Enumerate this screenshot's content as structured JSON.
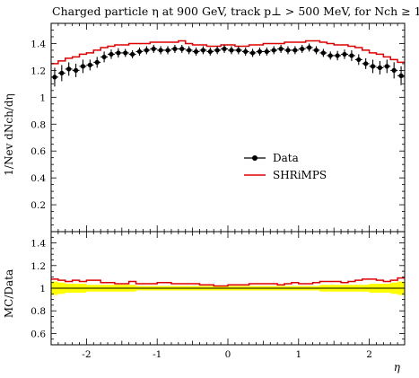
{
  "chart_data": {
    "type": "line",
    "title": "Charged particle η at 900 GeV, track p⊥ > 500 MeV, for Nch ≥ 1",
    "xlabel": "η",
    "ylabel": "1/Nev dNch/dη",
    "ratio_ylabel": "MC/Data",
    "xlim": [
      -2.5,
      2.5
    ],
    "ylim": [
      0,
      1.55
    ],
    "ratio_ylim": [
      0.5,
      1.5
    ],
    "x_ticks": [
      -2,
      -1,
      0,
      1,
      2
    ],
    "y_ticks": [
      0.2,
      0.4,
      0.6,
      0.8,
      1,
      1.2,
      1.4
    ],
    "ratio_y_ticks": [
      0.6,
      0.8,
      1,
      1.2,
      1.4
    ],
    "legend_position": "center-right",
    "series": [
      {
        "name": "Data",
        "style": "points-with-errors",
        "color": "#000000",
        "x": [
          -2.45,
          -2.35,
          -2.25,
          -2.15,
          -2.05,
          -1.95,
          -1.85,
          -1.75,
          -1.65,
          -1.55,
          -1.45,
          -1.35,
          -1.25,
          -1.15,
          -1.05,
          -0.95,
          -0.85,
          -0.75,
          -0.65,
          -0.55,
          -0.45,
          -0.35,
          -0.25,
          -0.15,
          -0.05,
          0.05,
          0.15,
          0.25,
          0.35,
          0.45,
          0.55,
          0.65,
          0.75,
          0.85,
          0.95,
          1.05,
          1.15,
          1.25,
          1.35,
          1.45,
          1.55,
          1.65,
          1.75,
          1.85,
          1.95,
          2.05,
          2.15,
          2.25,
          2.35,
          2.45
        ],
        "y": [
          1.15,
          1.18,
          1.21,
          1.2,
          1.23,
          1.24,
          1.26,
          1.3,
          1.32,
          1.33,
          1.33,
          1.32,
          1.34,
          1.35,
          1.36,
          1.35,
          1.35,
          1.36,
          1.36,
          1.35,
          1.34,
          1.35,
          1.34,
          1.35,
          1.36,
          1.35,
          1.35,
          1.34,
          1.33,
          1.34,
          1.34,
          1.35,
          1.36,
          1.35,
          1.35,
          1.36,
          1.37,
          1.35,
          1.33,
          1.31,
          1.31,
          1.32,
          1.31,
          1.28,
          1.25,
          1.23,
          1.22,
          1.23,
          1.2,
          1.16
        ],
        "yerr": [
          0.07,
          0.06,
          0.05,
          0.05,
          0.05,
          0.04,
          0.04,
          0.04,
          0.035,
          0.035,
          0.03,
          0.03,
          0.03,
          0.03,
          0.03,
          0.03,
          0.03,
          0.03,
          0.03,
          0.03,
          0.03,
          0.03,
          0.03,
          0.03,
          0.03,
          0.03,
          0.03,
          0.03,
          0.03,
          0.03,
          0.03,
          0.03,
          0.03,
          0.03,
          0.03,
          0.03,
          0.03,
          0.03,
          0.03,
          0.03,
          0.035,
          0.035,
          0.04,
          0.04,
          0.04,
          0.05,
          0.05,
          0.05,
          0.06,
          0.07
        ]
      },
      {
        "name": "SHRiMPS",
        "style": "step",
        "color": "#dd0000",
        "bin_edges": [
          -2.5,
          -2.4,
          -2.3,
          -2.2,
          -2.1,
          -2.0,
          -1.9,
          -1.8,
          -1.7,
          -1.6,
          -1.5,
          -1.4,
          -1.3,
          -1.2,
          -1.1,
          -1.0,
          -0.9,
          -0.8,
          -0.7,
          -0.6,
          -0.5,
          -0.4,
          -0.3,
          -0.2,
          -0.1,
          0.0,
          0.1,
          0.2,
          0.3,
          0.4,
          0.5,
          0.6,
          0.7,
          0.8,
          0.9,
          1.0,
          1.1,
          1.2,
          1.3,
          1.4,
          1.5,
          1.6,
          1.7,
          1.8,
          1.9,
          2.0,
          2.1,
          2.2,
          2.3,
          2.4,
          2.5
        ],
        "y": [
          1.25,
          1.27,
          1.29,
          1.3,
          1.32,
          1.33,
          1.35,
          1.37,
          1.38,
          1.39,
          1.39,
          1.4,
          1.4,
          1.4,
          1.41,
          1.41,
          1.41,
          1.41,
          1.42,
          1.4,
          1.39,
          1.39,
          1.38,
          1.38,
          1.39,
          1.39,
          1.38,
          1.38,
          1.39,
          1.39,
          1.4,
          1.4,
          1.4,
          1.41,
          1.41,
          1.41,
          1.42,
          1.42,
          1.41,
          1.4,
          1.39,
          1.39,
          1.38,
          1.37,
          1.35,
          1.33,
          1.32,
          1.3,
          1.28,
          1.26
        ]
      }
    ],
    "ratio": {
      "band_low": [
        0.94,
        0.95,
        0.96,
        0.96,
        0.96,
        0.97,
        0.97,
        0.97,
        0.97,
        0.97,
        0.97,
        0.97,
        0.98,
        0.98,
        0.98,
        0.98,
        0.98,
        0.98,
        0.98,
        0.98,
        0.98,
        0.98,
        0.98,
        0.98,
        0.98,
        0.98,
        0.98,
        0.98,
        0.98,
        0.98,
        0.98,
        0.98,
        0.98,
        0.98,
        0.98,
        0.98,
        0.98,
        0.98,
        0.97,
        0.97,
        0.97,
        0.97,
        0.97,
        0.97,
        0.97,
        0.96,
        0.96,
        0.96,
        0.95,
        0.94
      ],
      "band_high": [
        1.06,
        1.05,
        1.04,
        1.04,
        1.04,
        1.03,
        1.03,
        1.03,
        1.03,
        1.03,
        1.03,
        1.03,
        1.02,
        1.02,
        1.02,
        1.02,
        1.02,
        1.02,
        1.02,
        1.02,
        1.02,
        1.02,
        1.02,
        1.02,
        1.02,
        1.02,
        1.02,
        1.02,
        1.02,
        1.02,
        1.02,
        1.02,
        1.02,
        1.02,
        1.02,
        1.02,
        1.02,
        1.02,
        1.03,
        1.03,
        1.03,
        1.03,
        1.03,
        1.03,
        1.03,
        1.04,
        1.04,
        1.04,
        1.05,
        1.06
      ],
      "mc_over_data": [
        1.08,
        1.07,
        1.06,
        1.07,
        1.06,
        1.07,
        1.07,
        1.05,
        1.05,
        1.04,
        1.04,
        1.06,
        1.04,
        1.04,
        1.04,
        1.05,
        1.05,
        1.04,
        1.04,
        1.04,
        1.04,
        1.03,
        1.03,
        1.02,
        1.02,
        1.03,
        1.03,
        1.03,
        1.04,
        1.04,
        1.04,
        1.04,
        1.03,
        1.04,
        1.05,
        1.04,
        1.04,
        1.05,
        1.06,
        1.06,
        1.06,
        1.05,
        1.06,
        1.07,
        1.08,
        1.08,
        1.07,
        1.06,
        1.07,
        1.09
      ]
    }
  }
}
